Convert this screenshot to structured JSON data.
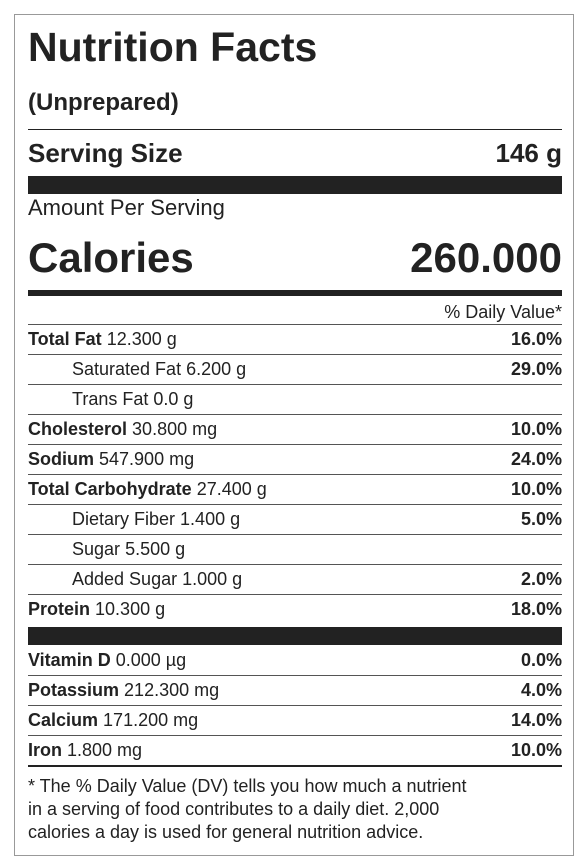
{
  "header": {
    "title": "Nutrition Facts",
    "subtitle": "(Unprepared)"
  },
  "serving": {
    "label": "Serving Size",
    "value": "146 g"
  },
  "amount_per_serving": "Amount Per Serving",
  "calories": {
    "label": "Calories",
    "value": "260.000"
  },
  "daily_value_header": "% Daily Value*",
  "nutrients": [
    {
      "name": "Total Fat",
      "amount": "12.300 g",
      "dv": "16.0%",
      "sub": [
        {
          "name": "Saturated Fat",
          "amount": "6.200 g",
          "dv": "29.0%"
        },
        {
          "name": "Trans Fat",
          "amount": "0.0 g"
        }
      ]
    },
    {
      "name": "Cholesterol",
      "amount": "30.800 mg",
      "dv": "10.0%"
    },
    {
      "name": "Sodium",
      "amount": "547.900 mg",
      "dv": "24.0%"
    },
    {
      "name": "Total Carbohydrate",
      "amount": "27.400 g",
      "dv": "10.0%",
      "sub": [
        {
          "name": "Dietary Fiber",
          "amount": "1.400 g",
          "dv": "5.0%"
        },
        {
          "name": "Sugar",
          "amount": "5.500 g"
        },
        {
          "name": "Added Sugar",
          "amount": "1.000 g",
          "dv": "2.0%"
        }
      ]
    },
    {
      "name": "Protein",
      "amount": "10.300 g",
      "dv": "18.0%"
    }
  ],
  "vitamins": [
    {
      "name": "Vitamin D",
      "amount": "0.000 µg",
      "dv": "0.0%"
    },
    {
      "name": "Potassium",
      "amount": "212.300 mg",
      "dv": "4.0%"
    },
    {
      "name": "Calcium",
      "amount": "171.200 mg",
      "dv": "14.0%"
    },
    {
      "name": "Iron",
      "amount": "1.800 mg",
      "dv": "10.0%"
    }
  ],
  "footnote": [
    "* The % Daily Value (DV) tells you how much a nutrient",
    "in a serving of food contributes to a daily diet. 2,000",
    "calories a day is used for general nutrition advice."
  ]
}
